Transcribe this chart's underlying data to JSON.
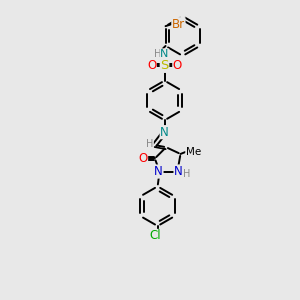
{
  "bg_color": "#e8e8e8",
  "bond_color": "#000000",
  "atom_colors": {
    "N": "#0000cc",
    "N_imine": "#008888",
    "O": "#ff0000",
    "S": "#bbbb00",
    "Br": "#cc6600",
    "Cl": "#00aa00",
    "H": "#888888",
    "C": "#000000"
  },
  "font_size": 7.5,
  "bond_width": 1.4,
  "scale": 1.0
}
